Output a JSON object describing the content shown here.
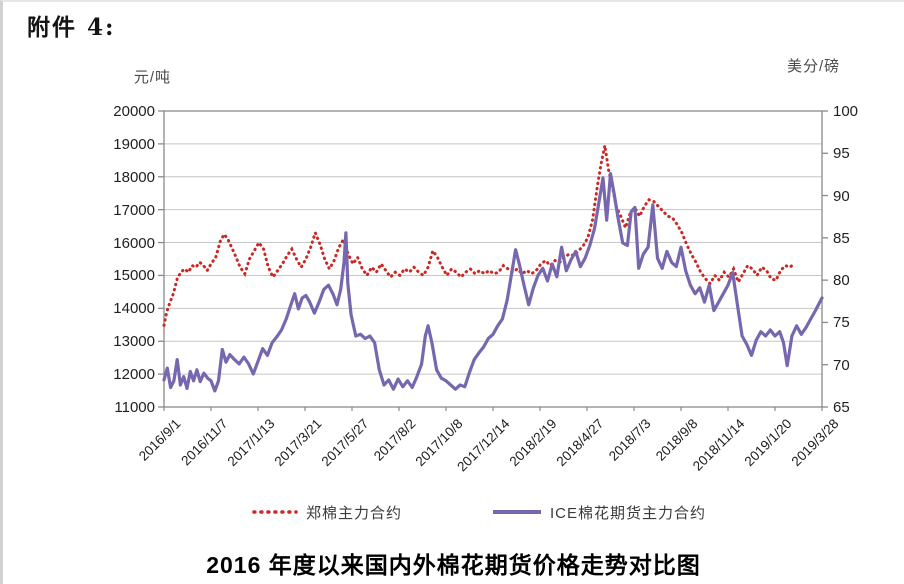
{
  "page": {
    "attachment_label": "附件 4:",
    "bottom_title": "2016 年度以来国内外棉花期货价格走势对比图"
  },
  "legend": {
    "items": [
      {
        "label": "郑棉主力合约",
        "style": "dotted"
      },
      {
        "label": "ICE棉花期货主力合约",
        "style": "solid"
      }
    ]
  },
  "colors": {
    "zhengzhou_red": "#cc2723",
    "ice_purple": "#7667af",
    "gridline": "#c6c6c6",
    "axis_border": "#8a8a8a"
  },
  "chart_data": {
    "type": "line",
    "title": "2016 年度以来国内外棉花期货价格走势对比图",
    "grid": true,
    "legend_position": "bottom",
    "y_left": {
      "label": "元/吨",
      "min": 11000,
      "max": 20000,
      "step": 1000,
      "tick_labels": [
        "20000",
        "19000",
        "18000",
        "17000",
        "16000",
        "15000",
        "14000",
        "13000",
        "12000",
        "11000"
      ]
    },
    "y_right": {
      "label": "美分/磅",
      "min": 65,
      "max": 100,
      "step": 5,
      "tick_labels": [
        "100",
        "95",
        "90",
        "85",
        "80",
        "75",
        "70",
        "65"
      ]
    },
    "x": {
      "tick_labels": [
        "2016/9/1",
        "2016/11/7",
        "2017/1/13",
        "2017/3/21",
        "2017/5/27",
        "2017/8/2",
        "2017/10/8",
        "2017/12/14",
        "2018/2/19",
        "2018/4/27",
        "2018/7/3",
        "2018/9/8",
        "2018/11/14",
        "2019/1/20",
        "2019/3/28"
      ],
      "note": "series x values are positions along the time axis in tick-interval units: 0 = 2016/9/1 … 14 = 2019/3/28"
    },
    "series": [
      {
        "name": "郑棉主力合约",
        "axis": "left",
        "unit": "元/吨",
        "style": "dotted",
        "color": "#cc2723",
        "points": [
          [
            0,
            13480
          ],
          [
            0.06,
            13900
          ],
          [
            0.12,
            14150
          ],
          [
            0.2,
            14450
          ],
          [
            0.28,
            14900
          ],
          [
            0.36,
            15100
          ],
          [
            0.44,
            15200
          ],
          [
            0.52,
            15100
          ],
          [
            0.6,
            15300
          ],
          [
            0.68,
            15250
          ],
          [
            0.76,
            15400
          ],
          [
            0.84,
            15300
          ],
          [
            0.92,
            15150
          ],
          [
            1,
            15350
          ],
          [
            1.1,
            15550
          ],
          [
            1.2,
            16050
          ],
          [
            1.28,
            16250
          ],
          [
            1.36,
            16100
          ],
          [
            1.44,
            15850
          ],
          [
            1.52,
            15600
          ],
          [
            1.62,
            15250
          ],
          [
            1.72,
            15050
          ],
          [
            1.82,
            15500
          ],
          [
            1.92,
            15750
          ],
          [
            2.02,
            16000
          ],
          [
            2.12,
            15800
          ],
          [
            2.22,
            15250
          ],
          [
            2.32,
            14950
          ],
          [
            2.42,
            15150
          ],
          [
            2.52,
            15350
          ],
          [
            2.62,
            15600
          ],
          [
            2.72,
            15800
          ],
          [
            2.82,
            15500
          ],
          [
            2.92,
            15250
          ],
          [
            3.02,
            15500
          ],
          [
            3.12,
            15850
          ],
          [
            3.22,
            16300
          ],
          [
            3.32,
            15950
          ],
          [
            3.42,
            15500
          ],
          [
            3.52,
            15200
          ],
          [
            3.62,
            15450
          ],
          [
            3.72,
            15850
          ],
          [
            3.82,
            16100
          ],
          [
            3.92,
            15650
          ],
          [
            4.02,
            15350
          ],
          [
            4.12,
            15550
          ],
          [
            4.22,
            15200
          ],
          [
            4.32,
            15000
          ],
          [
            4.42,
            15250
          ],
          [
            4.52,
            15100
          ],
          [
            4.62,
            15350
          ],
          [
            4.72,
            15150
          ],
          [
            4.82,
            14950
          ],
          [
            4.92,
            15100
          ],
          [
            5.02,
            15000
          ],
          [
            5.12,
            15200
          ],
          [
            5.22,
            15100
          ],
          [
            5.32,
            15250
          ],
          [
            5.42,
            15100
          ],
          [
            5.52,
            15000
          ],
          [
            5.62,
            15250
          ],
          [
            5.72,
            15750
          ],
          [
            5.82,
            15550
          ],
          [
            5.92,
            15250
          ],
          [
            6.02,
            15000
          ],
          [
            6.12,
            15200
          ],
          [
            6.22,
            15100
          ],
          [
            6.32,
            14950
          ],
          [
            6.42,
            15100
          ],
          [
            6.52,
            15200
          ],
          [
            6.62,
            15050
          ],
          [
            6.72,
            15150
          ],
          [
            6.82,
            15050
          ],
          [
            6.92,
            15150
          ],
          [
            7.02,
            15050
          ],
          [
            7.12,
            15100
          ],
          [
            7.22,
            15300
          ],
          [
            7.32,
            15200
          ],
          [
            7.42,
            15100
          ],
          [
            7.52,
            15200
          ],
          [
            7.62,
            15050
          ],
          [
            7.72,
            15150
          ],
          [
            7.82,
            15050
          ],
          [
            7.92,
            15150
          ],
          [
            8.02,
            15350
          ],
          [
            8.12,
            15450
          ],
          [
            8.22,
            15300
          ],
          [
            8.32,
            15450
          ],
          [
            8.42,
            15400
          ],
          [
            8.52,
            15550
          ],
          [
            8.62,
            15650
          ],
          [
            8.72,
            15600
          ],
          [
            8.82,
            15750
          ],
          [
            8.92,
            15900
          ],
          [
            9.02,
            16150
          ],
          [
            9.12,
            16700
          ],
          [
            9.22,
            17700
          ],
          [
            9.3,
            18400
          ],
          [
            9.38,
            18950
          ],
          [
            9.46,
            18200
          ],
          [
            9.54,
            17700
          ],
          [
            9.62,
            17100
          ],
          [
            9.72,
            16800
          ],
          [
            9.82,
            16450
          ],
          [
            9.92,
            16900
          ],
          [
            10.02,
            17050
          ],
          [
            10.12,
            16800
          ],
          [
            10.22,
            17100
          ],
          [
            10.32,
            17300
          ],
          [
            10.42,
            17250
          ],
          [
            10.52,
            17100
          ],
          [
            10.62,
            16950
          ],
          [
            10.72,
            16800
          ],
          [
            10.82,
            16750
          ],
          [
            10.92,
            16550
          ],
          [
            11.02,
            16300
          ],
          [
            11.12,
            15950
          ],
          [
            11.22,
            15650
          ],
          [
            11.32,
            15400
          ],
          [
            11.42,
            15100
          ],
          [
            11.52,
            14900
          ],
          [
            11.62,
            14750
          ],
          [
            11.72,
            15000
          ],
          [
            11.82,
            14850
          ],
          [
            11.92,
            15100
          ],
          [
            12.02,
            14950
          ],
          [
            12.12,
            15200
          ],
          [
            12.22,
            14800
          ],
          [
            12.32,
            15050
          ],
          [
            12.42,
            15300
          ],
          [
            12.52,
            15200
          ],
          [
            12.62,
            15000
          ],
          [
            12.72,
            15250
          ],
          [
            12.82,
            15150
          ],
          [
            12.92,
            14900
          ],
          [
            13.02,
            14850
          ],
          [
            13.12,
            15150
          ],
          [
            13.22,
            15300
          ],
          [
            13.32,
            15250
          ],
          [
            13.4,
            15350
          ]
        ]
      },
      {
        "name": "ICE棉花期货主力合约",
        "axis": "right",
        "unit": "美分/磅",
        "style": "solid",
        "color": "#7667af",
        "points": [
          [
            0,
            68.2
          ],
          [
            0.07,
            69.6
          ],
          [
            0.14,
            67.3
          ],
          [
            0.21,
            68.1
          ],
          [
            0.28,
            70.6
          ],
          [
            0.35,
            67.6
          ],
          [
            0.42,
            68.6
          ],
          [
            0.49,
            67.2
          ],
          [
            0.56,
            69.2
          ],
          [
            0.63,
            68.1
          ],
          [
            0.7,
            69.4
          ],
          [
            0.77,
            68
          ],
          [
            0.85,
            69
          ],
          [
            0.93,
            68.4
          ],
          [
            1,
            68.1
          ],
          [
            1.08,
            66.9
          ],
          [
            1.16,
            68.1
          ],
          [
            1.24,
            71.8
          ],
          [
            1.32,
            70.3
          ],
          [
            1.4,
            71.2
          ],
          [
            1.5,
            70.6
          ],
          [
            1.6,
            70.1
          ],
          [
            1.7,
            70.9
          ],
          [
            1.8,
            70.1
          ],
          [
            1.9,
            68.9
          ],
          [
            2,
            70.4
          ],
          [
            2.1,
            71.9
          ],
          [
            2.2,
            71.1
          ],
          [
            2.3,
            72.6
          ],
          [
            2.4,
            73.3
          ],
          [
            2.5,
            74.1
          ],
          [
            2.6,
            75.4
          ],
          [
            2.7,
            77.1
          ],
          [
            2.78,
            78.4
          ],
          [
            2.86,
            76.6
          ],
          [
            2.94,
            77.9
          ],
          [
            3.02,
            78.2
          ],
          [
            3.1,
            77.4
          ],
          [
            3.2,
            76.1
          ],
          [
            3.3,
            77.4
          ],
          [
            3.4,
            78.9
          ],
          [
            3.5,
            79.4
          ],
          [
            3.6,
            78.3
          ],
          [
            3.68,
            77.1
          ],
          [
            3.76,
            78.9
          ],
          [
            3.83,
            82.1
          ],
          [
            3.87,
            85.6
          ],
          [
            3.91,
            79.6
          ],
          [
            3.98,
            75.9
          ],
          [
            4.08,
            73.4
          ],
          [
            4.18,
            73.6
          ],
          [
            4.28,
            73.1
          ],
          [
            4.38,
            73.4
          ],
          [
            4.48,
            72.6
          ],
          [
            4.58,
            69.4
          ],
          [
            4.68,
            67.6
          ],
          [
            4.78,
            68.2
          ],
          [
            4.88,
            67.1
          ],
          [
            4.98,
            68.3
          ],
          [
            5.08,
            67.4
          ],
          [
            5.18,
            68.1
          ],
          [
            5.28,
            67.3
          ],
          [
            5.38,
            68.6
          ],
          [
            5.48,
            70.1
          ],
          [
            5.56,
            73.4
          ],
          [
            5.62,
            74.6
          ],
          [
            5.7,
            72.6
          ],
          [
            5.8,
            69.4
          ],
          [
            5.9,
            68.4
          ],
          [
            6,
            68.1
          ],
          [
            6.1,
            67.6
          ],
          [
            6.2,
            67.1
          ],
          [
            6.3,
            67.6
          ],
          [
            6.4,
            67.4
          ],
          [
            6.5,
            69.1
          ],
          [
            6.6,
            70.6
          ],
          [
            6.7,
            71.4
          ],
          [
            6.8,
            72.1
          ],
          [
            6.9,
            73.1
          ],
          [
            7,
            73.6
          ],
          [
            7.1,
            74.6
          ],
          [
            7.2,
            75.4
          ],
          [
            7.3,
            77.6
          ],
          [
            7.4,
            80.9
          ],
          [
            7.48,
            83.6
          ],
          [
            7.56,
            81.9
          ],
          [
            7.66,
            79.4
          ],
          [
            7.76,
            77.1
          ],
          [
            7.86,
            79.1
          ],
          [
            7.96,
            80.6
          ],
          [
            8.06,
            81.4
          ],
          [
            8.16,
            79.9
          ],
          [
            8.26,
            81.9
          ],
          [
            8.36,
            80.4
          ],
          [
            8.46,
            83.9
          ],
          [
            8.56,
            81.1
          ],
          [
            8.66,
            82.4
          ],
          [
            8.76,
            83.4
          ],
          [
            8.86,
            81.6
          ],
          [
            8.96,
            82.6
          ],
          [
            9.06,
            84.1
          ],
          [
            9.16,
            86.1
          ],
          [
            9.26,
            89.4
          ],
          [
            9.34,
            92.1
          ],
          [
            9.42,
            87.1
          ],
          [
            9.5,
            92.6
          ],
          [
            9.58,
            90.1
          ],
          [
            9.66,
            87.4
          ],
          [
            9.76,
            84.4
          ],
          [
            9.86,
            84.1
          ],
          [
            9.94,
            88.1
          ],
          [
            10.02,
            88.6
          ],
          [
            10.1,
            81.4
          ],
          [
            10.2,
            83.1
          ],
          [
            10.3,
            83.9
          ],
          [
            10.4,
            88.9
          ],
          [
            10.5,
            82.6
          ],
          [
            10.6,
            81.4
          ],
          [
            10.7,
            83.4
          ],
          [
            10.8,
            82.1
          ],
          [
            10.9,
            81.6
          ],
          [
            11,
            83.9
          ],
          [
            11.1,
            81.1
          ],
          [
            11.2,
            79.4
          ],
          [
            11.3,
            78.4
          ],
          [
            11.4,
            79.1
          ],
          [
            11.5,
            77.4
          ],
          [
            11.6,
            79.4
          ],
          [
            11.7,
            76.4
          ],
          [
            11.8,
            77.4
          ],
          [
            11.9,
            78.4
          ],
          [
            12,
            79.4
          ],
          [
            12.1,
            80.9
          ],
          [
            12.2,
            77.1
          ],
          [
            12.3,
            73.4
          ],
          [
            12.4,
            72.4
          ],
          [
            12.5,
            71.1
          ],
          [
            12.6,
            72.9
          ],
          [
            12.7,
            73.9
          ],
          [
            12.8,
            73.4
          ],
          [
            12.9,
            74.1
          ],
          [
            13,
            73.4
          ],
          [
            13.1,
            73.9
          ],
          [
            13.18,
            72.6
          ],
          [
            13.26,
            69.9
          ],
          [
            13.36,
            73.4
          ],
          [
            13.46,
            74.6
          ],
          [
            13.56,
            73.6
          ],
          [
            13.66,
            74.4
          ],
          [
            13.76,
            75.4
          ],
          [
            13.86,
            76.4
          ],
          [
            14,
            77.9
          ]
        ]
      }
    ]
  }
}
